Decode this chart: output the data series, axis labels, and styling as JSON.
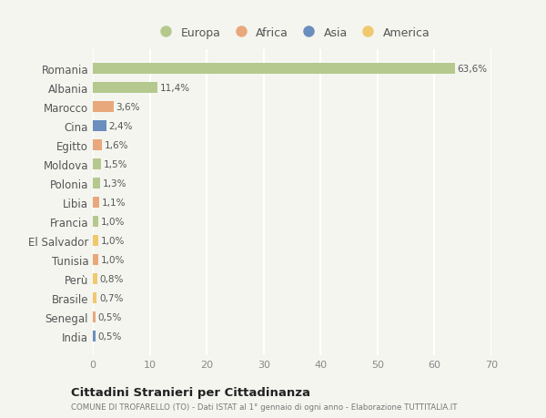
{
  "countries": [
    "Romania",
    "Albania",
    "Marocco",
    "Cina",
    "Egitto",
    "Moldova",
    "Polonia",
    "Libia",
    "Francia",
    "El Salvador",
    "Tunisia",
    "Perù",
    "Brasile",
    "Senegal",
    "India"
  ],
  "values": [
    63.6,
    11.4,
    3.6,
    2.4,
    1.6,
    1.5,
    1.3,
    1.1,
    1.0,
    1.0,
    1.0,
    0.8,
    0.7,
    0.5,
    0.5
  ],
  "labels": [
    "63,6%",
    "11,4%",
    "3,6%",
    "2,4%",
    "1,6%",
    "1,5%",
    "1,3%",
    "1,1%",
    "1,0%",
    "1,0%",
    "1,0%",
    "0,8%",
    "0,7%",
    "0,5%",
    "0,5%"
  ],
  "colors": [
    "#b5c98e",
    "#b5c98e",
    "#e8a87c",
    "#6b8ebf",
    "#e8a87c",
    "#b5c98e",
    "#b5c98e",
    "#e8a87c",
    "#b5c98e",
    "#f0c96e",
    "#e8a87c",
    "#f0c96e",
    "#f0c96e",
    "#e8a87c",
    "#6b8ebf"
  ],
  "legend": [
    {
      "label": "Europa",
      "color": "#b5c98e"
    },
    {
      "label": "Africa",
      "color": "#e8a87c"
    },
    {
      "label": "Asia",
      "color": "#6b8ebf"
    },
    {
      "label": "America",
      "color": "#f0c96e"
    }
  ],
  "xlim": [
    0,
    70
  ],
  "xticks": [
    0,
    10,
    20,
    30,
    40,
    50,
    60,
    70
  ],
  "title": "Cittadini Stranieri per Cittadinanza",
  "subtitle": "COMUNE DI TROFARELLO (TO) - Dati ISTAT al 1° gennaio di ogni anno - Elaborazione TUTTITALIA.IT",
  "bg_color": "#f5f5f0",
  "grid_color": "#ffffff",
  "bar_height": 0.55
}
